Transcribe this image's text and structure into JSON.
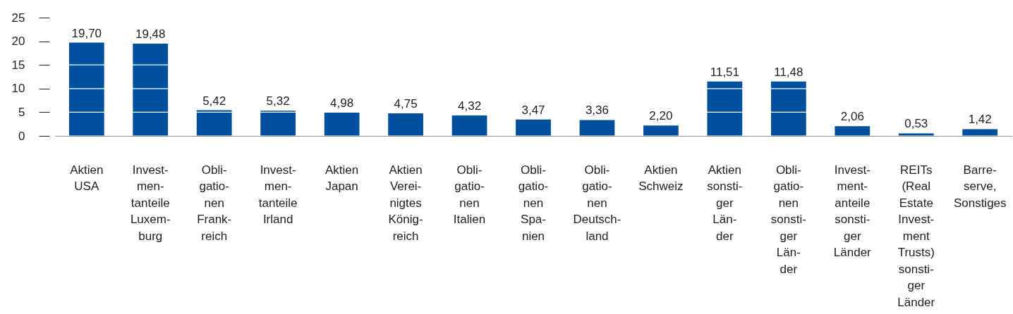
{
  "chart_data": {
    "type": "bar",
    "categories": [
      "Aktien\nUSA",
      "Invest-\nmen-\ntanteile\nLuxem-\nburg",
      "Obli-\ngatio-\nnen\nFrank-\nreich",
      "Invest-\nmen-\ntanteile\nIrland",
      "Aktien\nJapan",
      "Aktien\nVerei-\nnigtes\nKönig-\nreich",
      "Obli-\ngatio-\nnen\nItalien",
      "Obli-\ngatio-\nnen\nSpa-\nnien",
      "Obli-\ngatio-\nnen\nDeutsch-\nland",
      "Aktien\nSchweiz",
      "Aktien\nsonsti-\nger\nLän-\nder",
      "Obli-\ngatio-\nnen\nsonsti-\nger\nLän-\nder",
      "Invest-\nment-\nanteile\nsonsti-\nger\nLänder",
      "REITs\n(Real\nEstate\nInvest-\nment\nTrusts)\nsonsti-\nger\nLänder",
      "Barre-\nserve,\nSonstiges"
    ],
    "values": [
      19.7,
      19.48,
      5.42,
      5.32,
      4.98,
      4.75,
      4.32,
      3.47,
      3.36,
      2.2,
      11.51,
      11.48,
      2.06,
      0.53,
      1.42
    ],
    "value_labels": [
      "19,70",
      "19,48",
      "5,42",
      "5,32",
      "4,98",
      "4,75",
      "4,32",
      "3,47",
      "3,36",
      "2,20",
      "11,51",
      "11,48",
      "2,06",
      "0,53",
      "1,42"
    ],
    "color": "#00509e",
    "ylim": [
      0,
      25
    ],
    "yticks": [
      0,
      5,
      10,
      15,
      20,
      25
    ],
    "grid": "y"
  }
}
